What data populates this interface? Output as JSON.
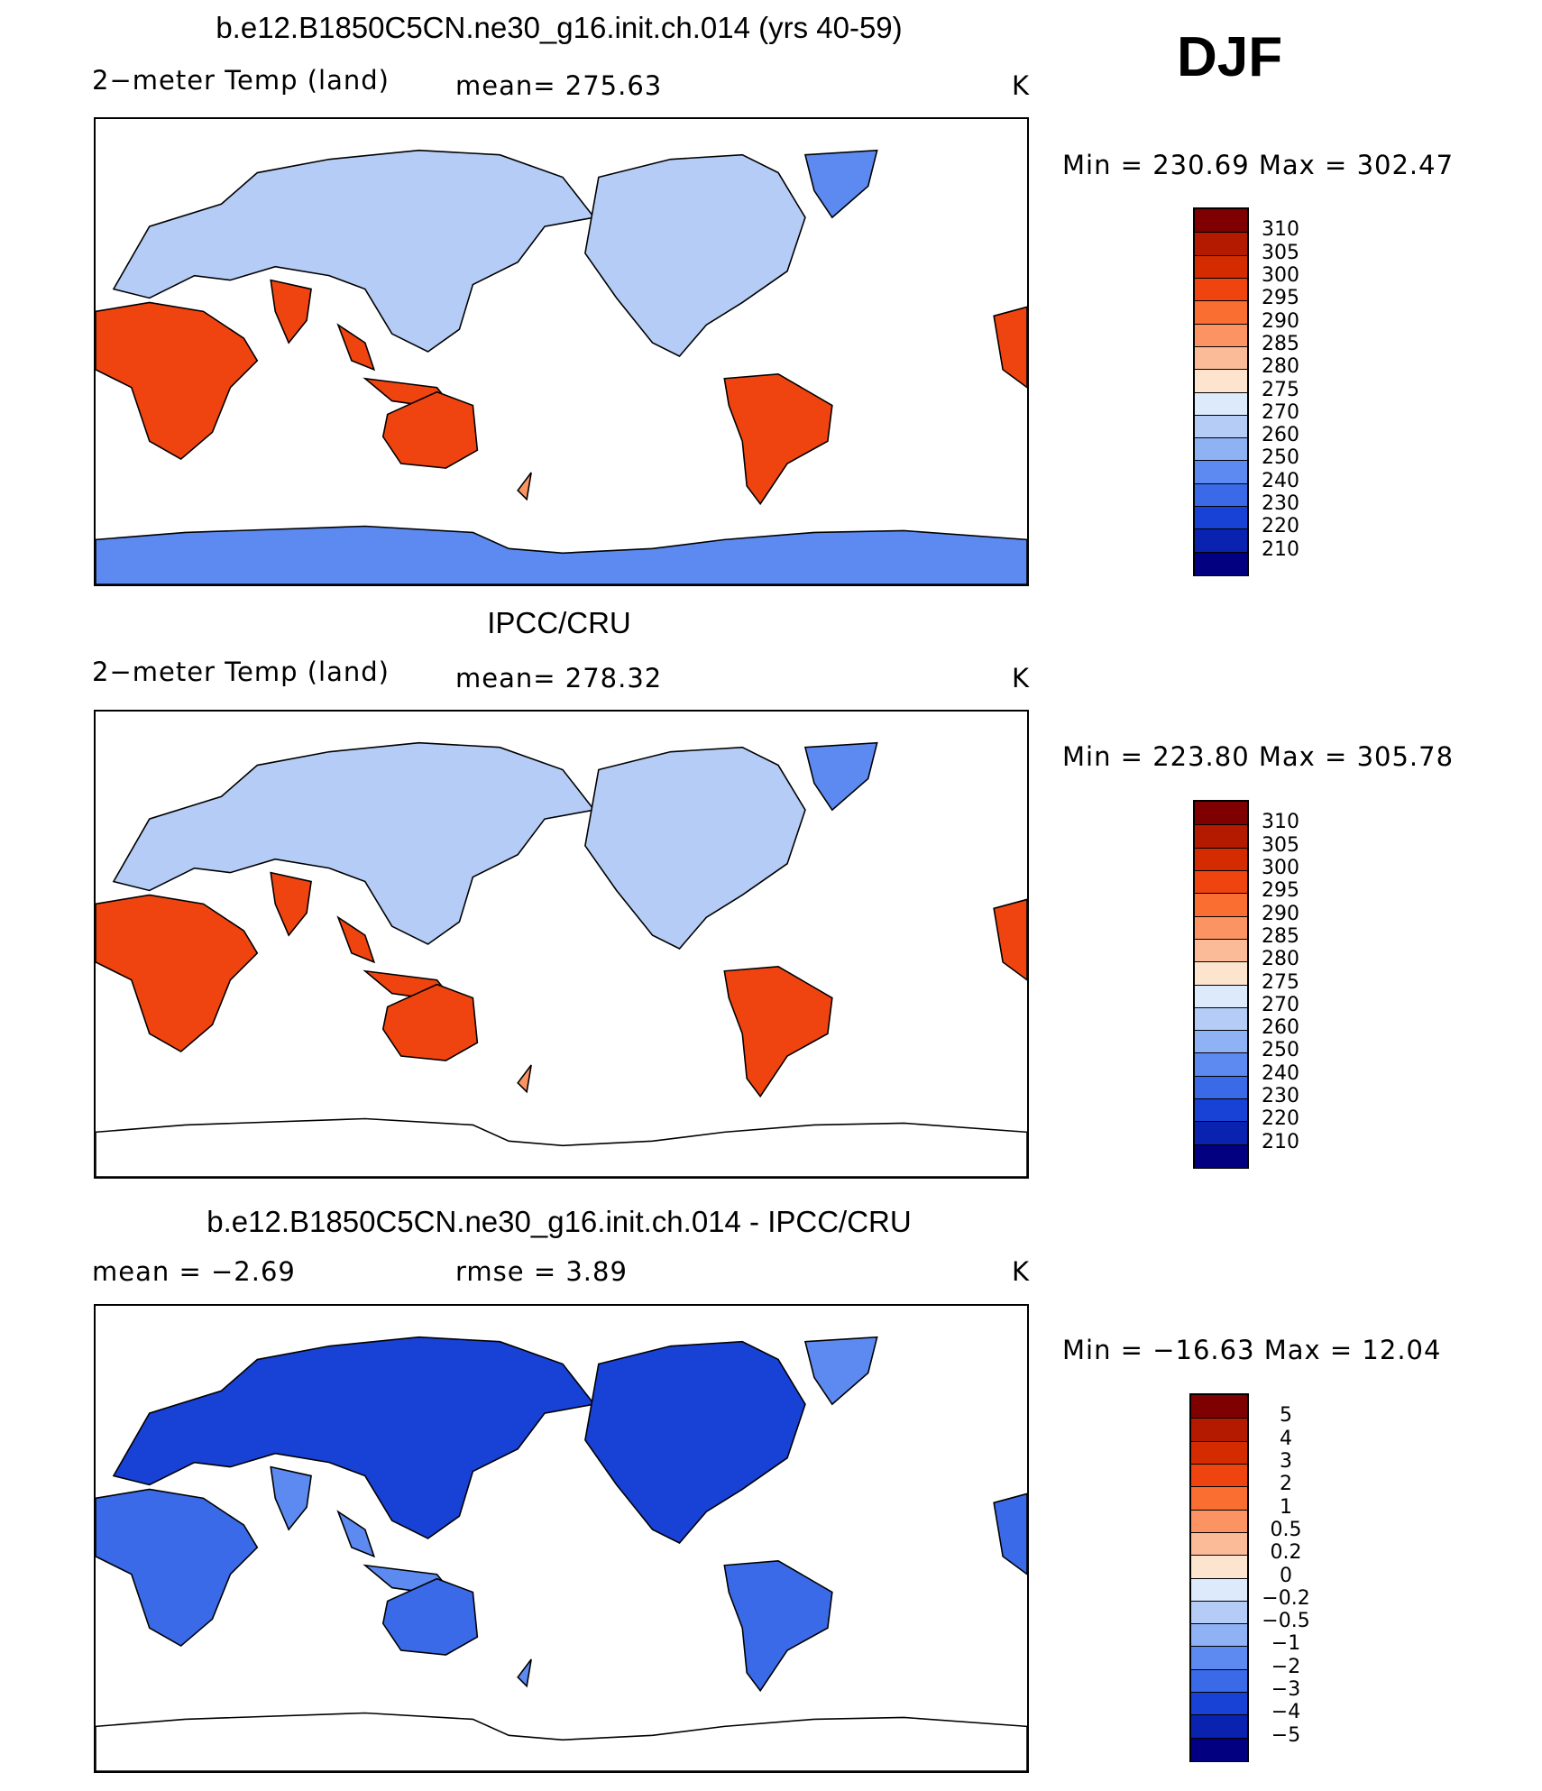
{
  "season": "DJF",
  "panels": [
    {
      "title": "b.e12.B1850C5CN.ne30_g16.init.ch.014 (yrs 40-59)",
      "left_label": "2−meter Temp (land)",
      "mid_label": "mean=  275.63",
      "units": "K",
      "minmax": "Min  =  230.69  Max  =  302.47",
      "scale": "abs"
    },
    {
      "title": "IPCC/CRU",
      "left_label": "2−meter Temp (land)",
      "mid_label": "mean=  278.32",
      "units": "K",
      "minmax": "Min  =  223.80  Max  =  305.78",
      "scale": "abs"
    },
    {
      "title": "b.e12.B1850C5CN.ne30_g16.init.ch.014 - IPCC/CRU",
      "left_label": "mean  =    −2.69",
      "mid_label": "rmse  =      3.89",
      "units": "K",
      "minmax": "Min  =  −16.63  Max  =    12.04",
      "scale": "diff"
    }
  ],
  "colorbars": {
    "abs": {
      "labels": [
        "310",
        "305",
        "300",
        "295",
        "290",
        "285",
        "280",
        "275",
        "270",
        "260",
        "250",
        "240",
        "230",
        "220",
        "210"
      ],
      "colors": [
        "#7f0000",
        "#b31a00",
        "#d42c00",
        "#f04410",
        "#fa6e32",
        "#fb9462",
        "#fcbb98",
        "#fde4cf",
        "#dceafb",
        "#b5cdf6",
        "#8fb2f5",
        "#5c8af0",
        "#3a6ae8",
        "#1841d6",
        "#0a22b0",
        "#020080"
      ]
    },
    "diff": {
      "labels": [
        "5",
        "4",
        "3",
        "2",
        "1",
        "0.5",
        "0.2",
        "0",
        "−0.2",
        "−0.5",
        "−1",
        "−2",
        "−3",
        "−4",
        "−5"
      ],
      "colors": [
        "#7f0000",
        "#b31a00",
        "#d42c00",
        "#f04410",
        "#fa6e32",
        "#fb9462",
        "#fcbb98",
        "#fde4cf",
        "#dceafb",
        "#b5cdf6",
        "#8fb2f5",
        "#5c8af0",
        "#3a6ae8",
        "#1841d6",
        "#0a22b0",
        "#020080"
      ]
    }
  }
}
